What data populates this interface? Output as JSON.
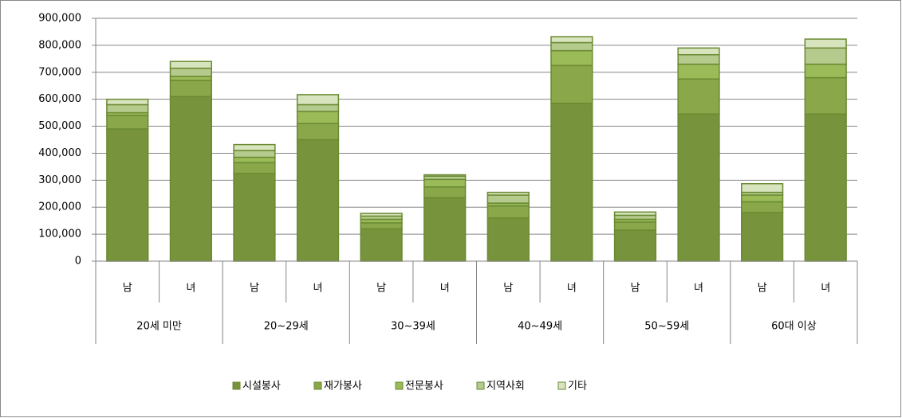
{
  "chart_data": {
    "type": "stacked_bar",
    "categories": [
      "남",
      "녀",
      "남",
      "녀",
      "남",
      "녀",
      "남",
      "녀",
      "남",
      "녀",
      "남",
      "녀"
    ],
    "groups": [
      "20세 미만",
      "20~29세",
      "30~39세",
      "40~49세",
      "50~59세",
      "60대 이상"
    ],
    "series": [
      {
        "name": "시설봉사",
        "color": "#77933c",
        "values": [
          490000,
          610000,
          325000,
          450000,
          120000,
          235000,
          160000,
          585000,
          115000,
          545000,
          180000,
          545000
        ]
      },
      {
        "name": "재가봉사",
        "color": "#8aa84a",
        "values": [
          50000,
          60000,
          40000,
          60000,
          22000,
          40000,
          45000,
          140000,
          30000,
          130000,
          40000,
          135000
        ]
      },
      {
        "name": "전문봉사",
        "color": "#9bbb59",
        "values": [
          10000,
          15000,
          20000,
          45000,
          13000,
          28000,
          10000,
          55000,
          10000,
          55000,
          25000,
          50000
        ]
      },
      {
        "name": "지역사회",
        "color": "#b5ca8d",
        "values": [
          30000,
          30000,
          25000,
          25000,
          12000,
          12000,
          30000,
          30000,
          15000,
          35000,
          10000,
          60000
        ]
      },
      {
        "name": "기타",
        "color": "#d7e4bd",
        "values": [
          20000,
          25000,
          22000,
          37000,
          10000,
          5000,
          10000,
          22000,
          12000,
          25000,
          32000,
          33000
        ]
      }
    ],
    "ylim": [
      0,
      900000
    ],
    "yticks": [
      0,
      {
        "value": 100000,
        "label": "100,000"
      },
      {
        "value": 200000,
        "label": "200,000"
      },
      {
        "value": 300000,
        "label": "300,000"
      },
      {
        "value": 400000,
        "label": "400,000"
      },
      {
        "value": 500000,
        "label": "500,000"
      },
      {
        "value": 600000,
        "label": "600,000"
      },
      {
        "value": 700000,
        "label": "700,000"
      },
      {
        "value": 800000,
        "label": "800,000"
      },
      {
        "value": 900000,
        "label": "900,000"
      }
    ],
    "grid": true,
    "legend": "bottom"
  }
}
